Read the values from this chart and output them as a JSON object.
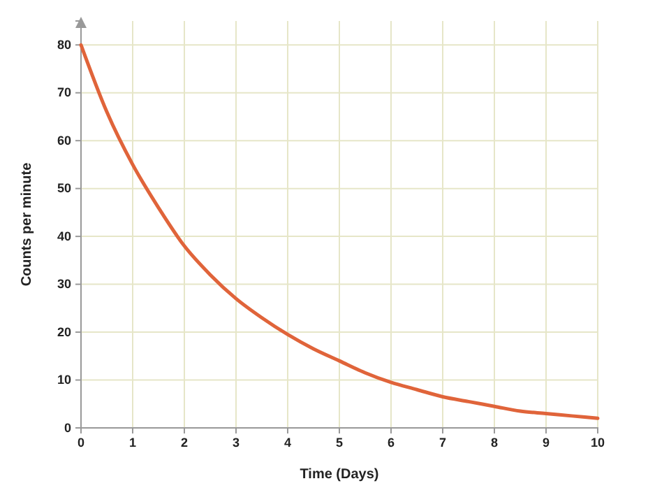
{
  "chart_data": {
    "type": "line",
    "xlabel": "Time (Days)",
    "ylabel": "Counts per minute",
    "x": [
      0,
      0.5,
      1,
      1.5,
      2,
      2.5,
      3,
      3.5,
      4,
      4.5,
      5,
      5.5,
      6,
      6.5,
      7,
      7.5,
      8,
      8.5,
      9,
      9.5,
      10
    ],
    "series": [
      {
        "color": "#e0643a",
        "values": [
          80,
          66,
          55,
          46,
          38,
          32,
          27,
          23,
          19.5,
          16.5,
          14,
          11.5,
          9.5,
          8,
          6.5,
          5.5,
          4.5,
          3.5,
          3,
          2.5,
          2
        ]
      }
    ],
    "xlim": [
      0,
      10
    ],
    "ylim": [
      0,
      85
    ],
    "xticks": [
      0,
      1,
      2,
      3,
      4,
      5,
      6,
      7,
      8,
      9,
      10
    ],
    "yticks": [
      0,
      10,
      20,
      30,
      40,
      50,
      60,
      70,
      80
    ],
    "grid": true,
    "marker": "none",
    "line_style": "solid"
  }
}
